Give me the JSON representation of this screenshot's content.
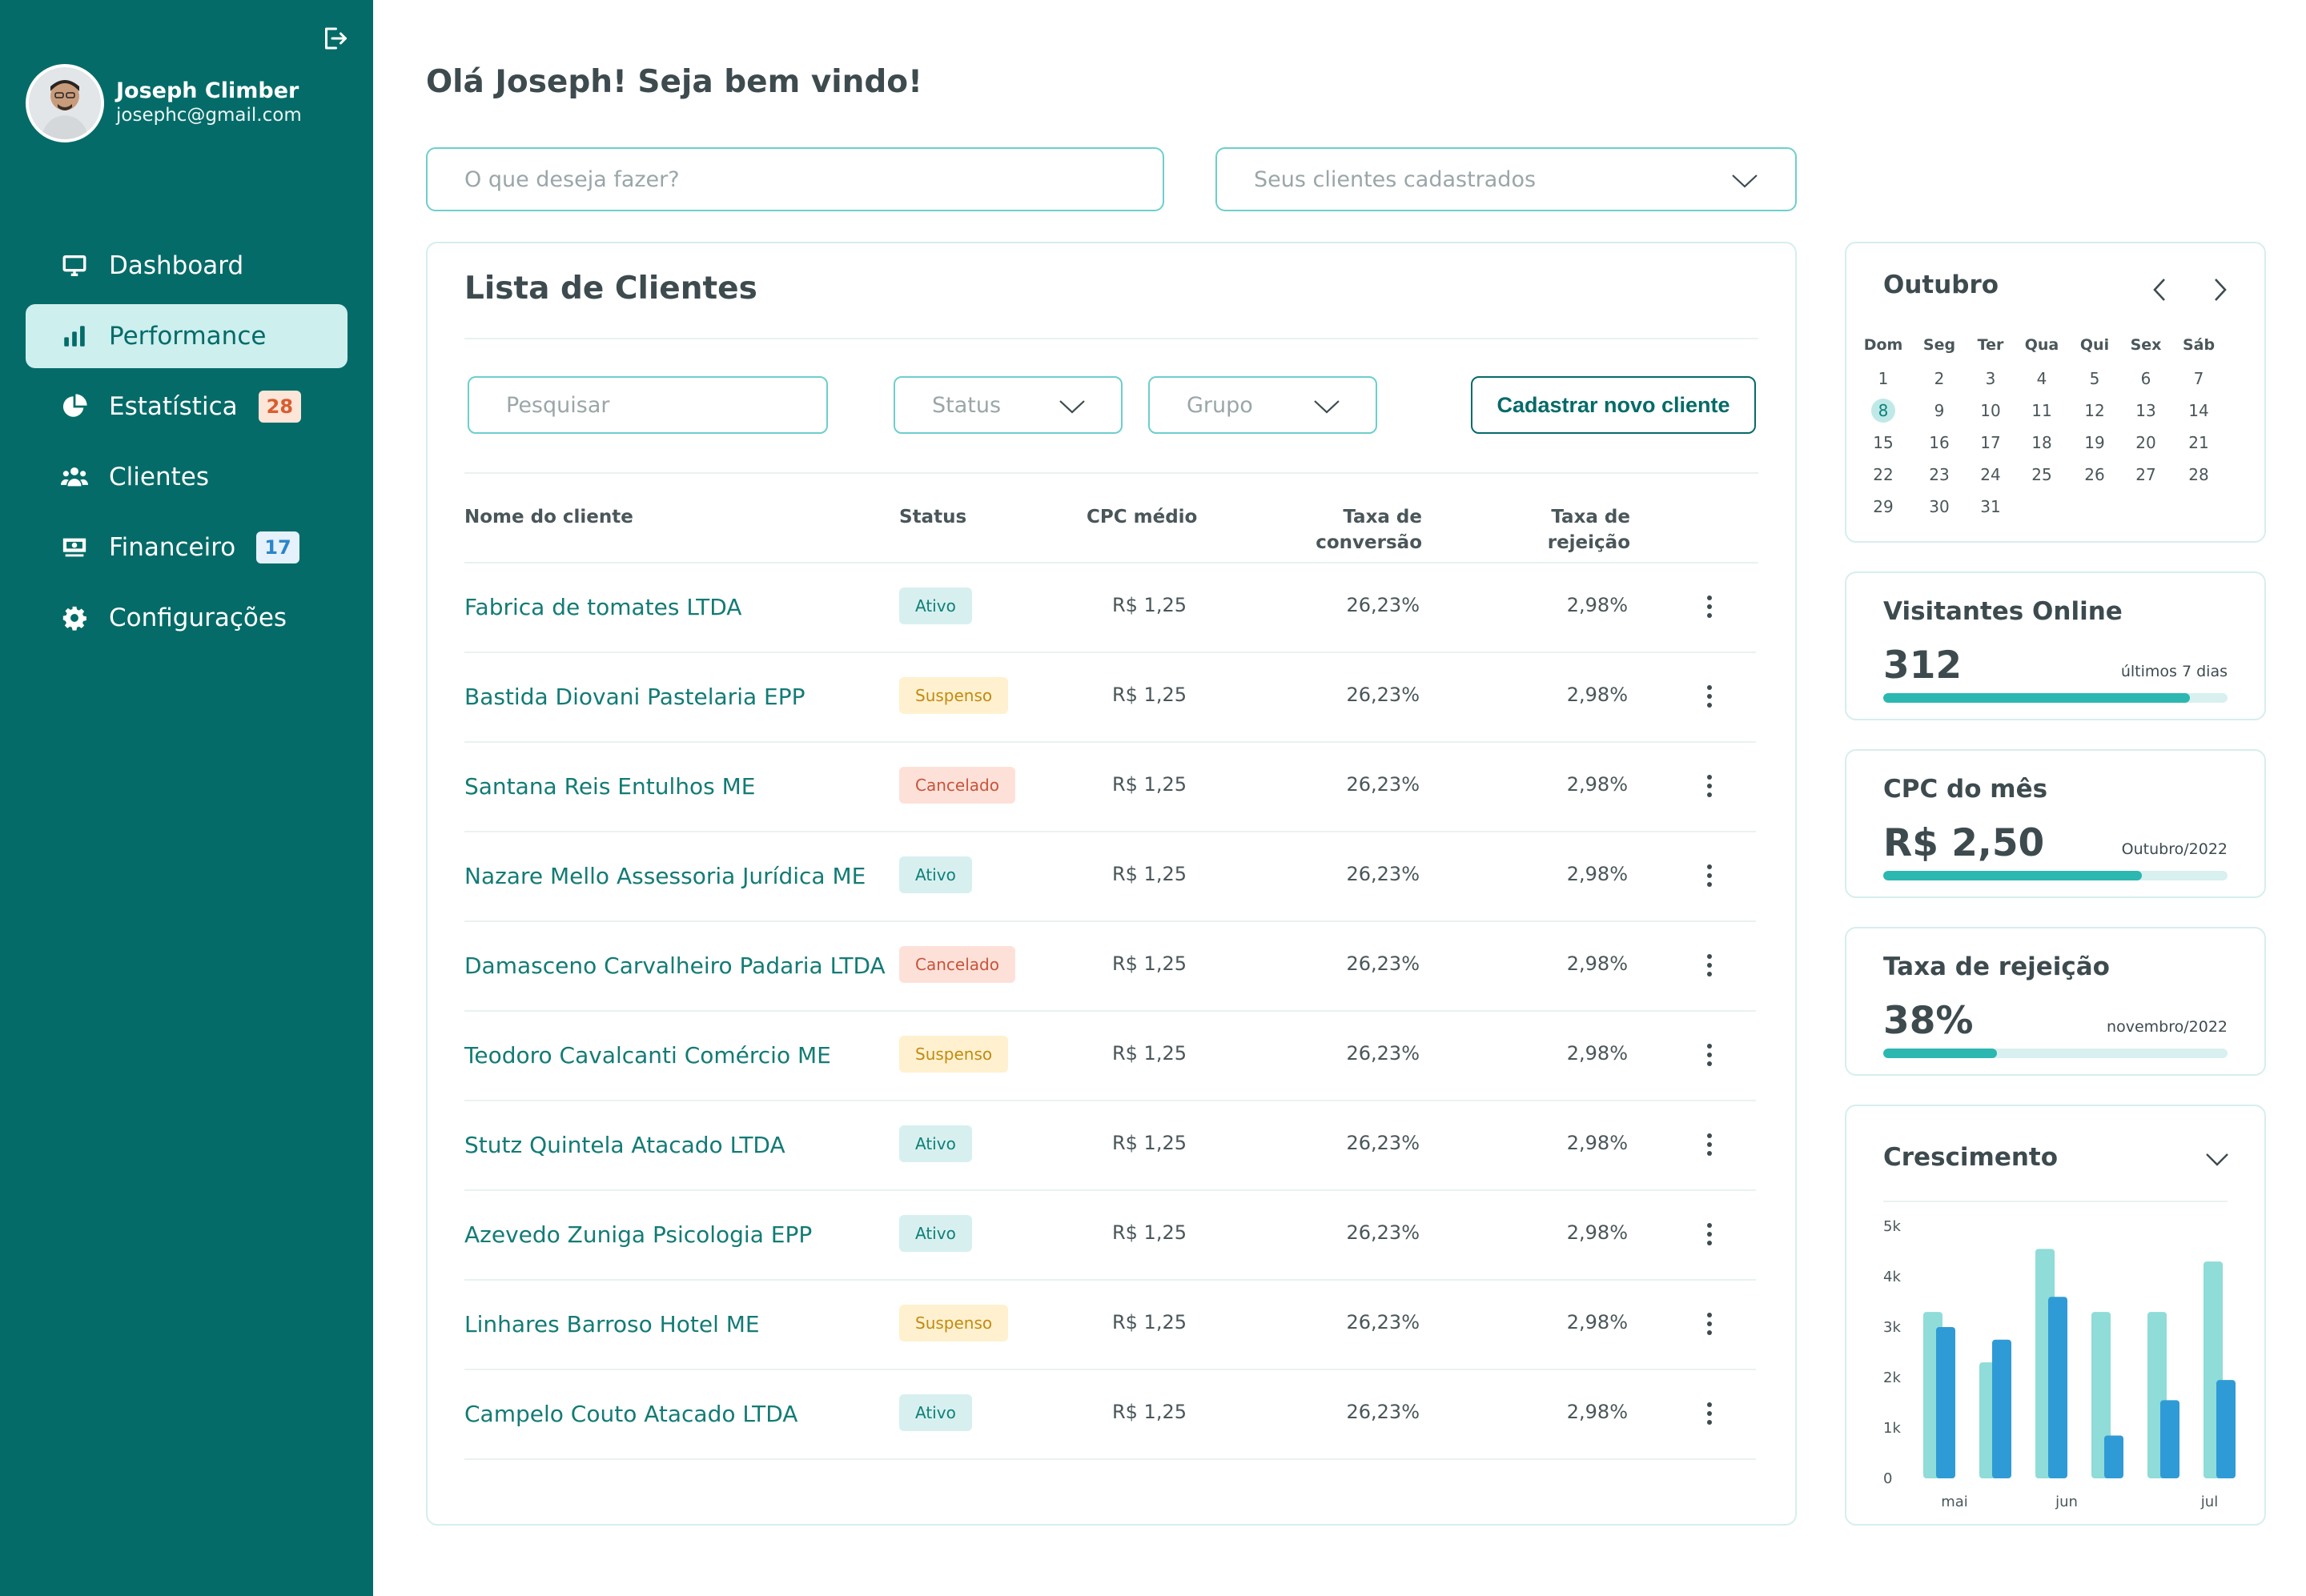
{
  "user": {
    "name": "Joseph Climber",
    "email": "josephc@gmail.com"
  },
  "nav": [
    {
      "label": "Dashboard",
      "icon": "monitor-icon",
      "active": false,
      "badge": ""
    },
    {
      "label": "Performance",
      "icon": "bar-chart-icon",
      "active": true,
      "badge": ""
    },
    {
      "label": "Estatística",
      "icon": "pie-chart-icon",
      "active": false,
      "badge": "28"
    },
    {
      "label": "Clientes",
      "icon": "users-icon",
      "active": false,
      "badge": ""
    },
    {
      "label": "Financeiro",
      "icon": "money-icon",
      "active": false,
      "badge": "17"
    },
    {
      "label": "Configurações",
      "icon": "gear-icon",
      "active": false,
      "badge": ""
    }
  ],
  "header": {
    "greeting": "Olá Joseph! Seja bem vindo!",
    "action_placeholder": "O que deseja fazer?",
    "clients_select": "Seus clientes cadastrados"
  },
  "clients": {
    "title": "Lista de Clientes",
    "search_placeholder": "Pesquisar",
    "status_filter": "Status",
    "group_filter": "Grupo",
    "new_button": "Cadastrar novo cliente",
    "columns": {
      "name": "Nome do cliente",
      "status": "Status",
      "cpc": "CPC médio",
      "conv1": "Taxa de",
      "conv2": "conversão",
      "rej1": "Taxa de",
      "rej2": "rejeição"
    },
    "rows": [
      {
        "name": "Fabrica de tomates LTDA",
        "status": "Ativo",
        "cpc": "R$ 1,25",
        "conv": "26,23%",
        "rej": "2,98%"
      },
      {
        "name": "Bastida Diovani Pastelaria EPP",
        "status": "Suspenso",
        "cpc": "R$ 1,25",
        "conv": "26,23%",
        "rej": "2,98%"
      },
      {
        "name": "Santana Reis Entulhos ME",
        "status": "Cancelado",
        "cpc": "R$ 1,25",
        "conv": "26,23%",
        "rej": "2,98%"
      },
      {
        "name": "Nazare Mello Assessoria Jurídica ME",
        "status": "Ativo",
        "cpc": "R$ 1,25",
        "conv": "26,23%",
        "rej": "2,98%"
      },
      {
        "name": "Damasceno Carvalheiro Padaria LTDA",
        "status": "Cancelado",
        "cpc": "R$ 1,25",
        "conv": "26,23%",
        "rej": "2,98%"
      },
      {
        "name": "Teodoro Cavalcanti Comércio ME",
        "status": "Suspenso",
        "cpc": "R$ 1,25",
        "conv": "26,23%",
        "rej": "2,98%"
      },
      {
        "name": "Stutz Quintela Atacado LTDA",
        "status": "Ativo",
        "cpc": "R$ 1,25",
        "conv": "26,23%",
        "rej": "2,98%"
      },
      {
        "name": "Azevedo Zuniga Psicologia EPP",
        "status": "Ativo",
        "cpc": "R$ 1,25",
        "conv": "26,23%",
        "rej": "2,98%"
      },
      {
        "name": "Linhares Barroso Hotel ME",
        "status": "Suspenso",
        "cpc": "R$ 1,25",
        "conv": "26,23%",
        "rej": "2,98%"
      },
      {
        "name": "Campelo Couto Atacado LTDA",
        "status": "Ativo",
        "cpc": "R$ 1,25",
        "conv": "26,23%",
        "rej": "2,98%"
      }
    ]
  },
  "calendar": {
    "month": "Outubro",
    "weekdays": [
      "Dom",
      "Seg",
      "Ter",
      "Qua",
      "Qui",
      "Sex",
      "Sáb"
    ],
    "weeks": [
      [
        "1",
        "2",
        "3",
        "4",
        "5",
        "6",
        "7"
      ],
      [
        "8",
        "9",
        "10",
        "11",
        "12",
        "13",
        "14"
      ],
      [
        "15",
        "16",
        "17",
        "18",
        "19",
        "20",
        "21"
      ],
      [
        "22",
        "23",
        "24",
        "25",
        "26",
        "27",
        "28"
      ],
      [
        "29",
        "30",
        "31",
        "",
        "",
        "",
        ""
      ]
    ],
    "today": "8"
  },
  "stats": [
    {
      "title": "Visitantes Online",
      "value": "312",
      "note": "últimos 7 dias",
      "progress": 0.89
    },
    {
      "title": "CPC do mês",
      "value": "R$ 2,50",
      "note": "Outubro/2022",
      "progress": 0.75
    },
    {
      "title": "Taxa de rejeição",
      "value": "38%",
      "note": "novembro/2022",
      "progress": 0.33
    }
  ],
  "colors": {
    "sidebar": "#046b68",
    "accent": "#2cb7b1",
    "bar_light": "#8fdcd8",
    "bar_dark": "#2f9bd6"
  },
  "chart_data": {
    "type": "bar",
    "title": "Crescimento",
    "x_tick_labels": [
      "mai",
      "jun",
      "jul"
    ],
    "y_tick_labels": [
      "0",
      "1k",
      "2k",
      "3k",
      "4k",
      "5k"
    ],
    "ylim": [
      0,
      5000
    ],
    "groups": 6,
    "series": [
      {
        "values": [
          3300,
          2300,
          4550,
          3300,
          3300,
          4300
        ]
      },
      {
        "values": [
          3000,
          2750,
          3600,
          850,
          1550,
          1950
        ]
      }
    ]
  }
}
